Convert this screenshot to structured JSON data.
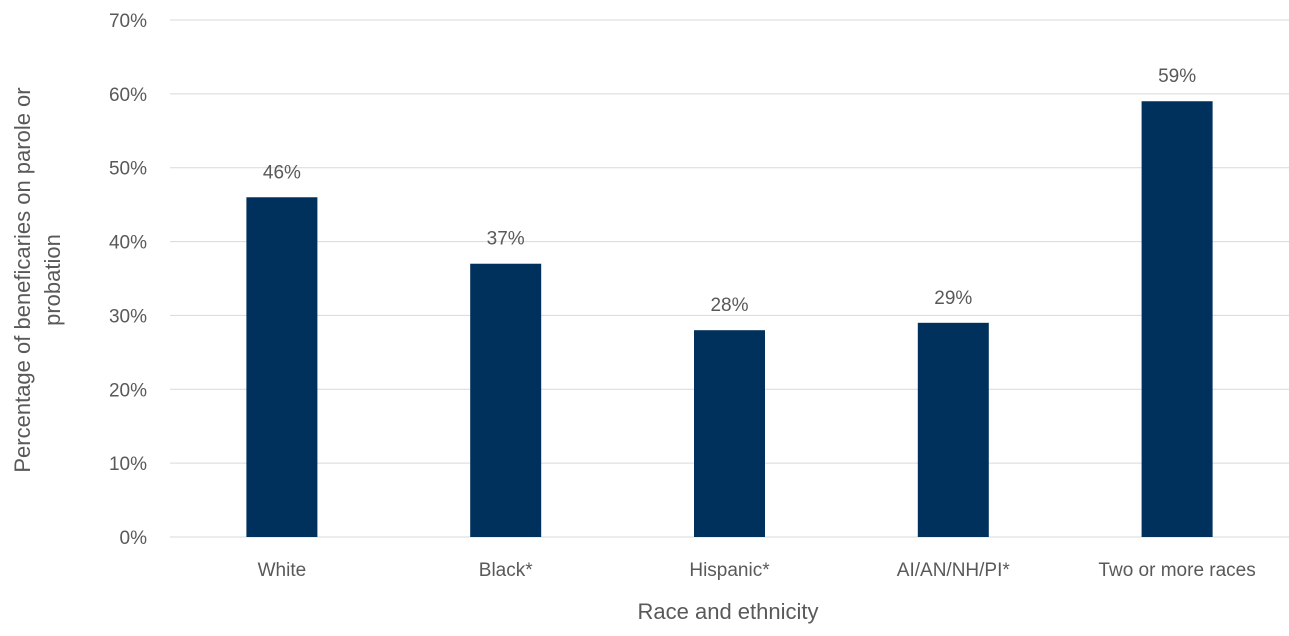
{
  "chart_data": {
    "type": "bar",
    "categories": [
      "White",
      "Black*",
      "Hispanic*",
      "AI/AN/NH/PI*",
      "Two or more races"
    ],
    "values": [
      46,
      37,
      28,
      29,
      59
    ],
    "value_labels": [
      "46%",
      "37%",
      "28%",
      "29%",
      "59%"
    ],
    "xlabel": "Race and ethnicity",
    "ylabel": {
      "line1": "Percentage of beneficaries on parole or",
      "line2": "probation"
    },
    "ylim": [
      0,
      70
    ],
    "yticks": [
      0,
      10,
      20,
      30,
      40,
      50,
      60,
      70
    ],
    "ytick_labels": [
      "0%",
      "10%",
      "20%",
      "30%",
      "40%",
      "50%",
      "60%",
      "70%"
    ],
    "grid": true,
    "legend": "none",
    "colors": {
      "bar": "#00305c",
      "grid": "#d9d9d9",
      "text": "#595959"
    }
  }
}
